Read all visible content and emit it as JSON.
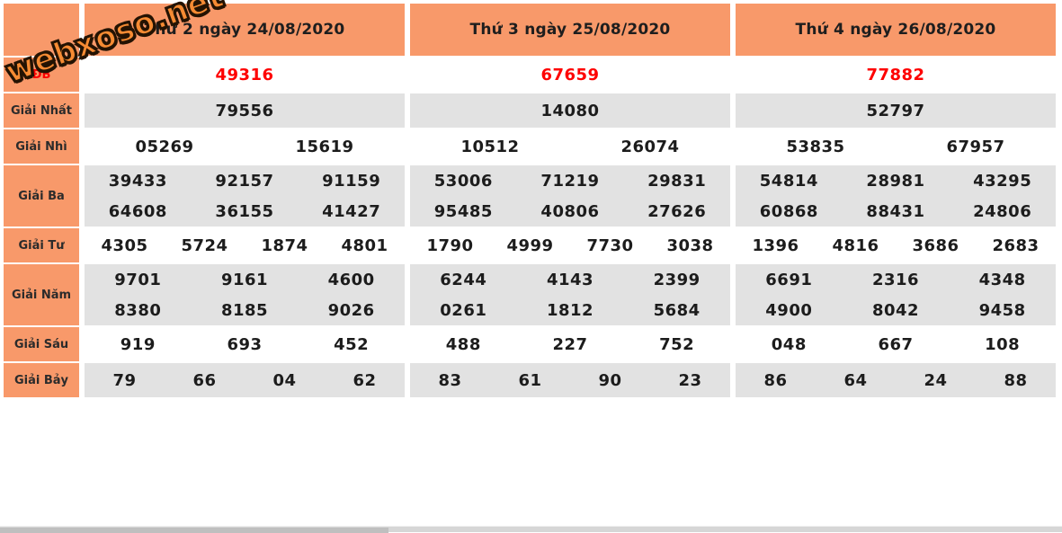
{
  "watermark": {
    "text": "webxoso.net"
  },
  "colors": {
    "header_orange": "#f8996a",
    "row_gray": "#e2e2e2",
    "special_red": "#fe0000",
    "number_text": "#1c1c1c"
  },
  "label_column": {
    "header": "",
    "rows": [
      {
        "id": "db",
        "label": "ĐB"
      },
      {
        "id": "nhat",
        "label": "Giải Nhất"
      },
      {
        "id": "nhi",
        "label": "Giải Nhì"
      },
      {
        "id": "ba",
        "label": "Giải Ba"
      },
      {
        "id": "tu",
        "label": "Giải Tư"
      },
      {
        "id": "nam",
        "label": "Giải Năm"
      },
      {
        "id": "sau",
        "label": "Giải Sáu"
      },
      {
        "id": "bay",
        "label": "Giải Bảy"
      }
    ]
  },
  "days": [
    {
      "title": "Thứ 2 ngày 24/08/2020",
      "prizes": {
        "db": [
          "49316"
        ],
        "nhat": [
          "79556"
        ],
        "nhi": [
          "05269",
          "15619"
        ],
        "ba": [
          "39433",
          "92157",
          "91159",
          "64608",
          "36155",
          "41427"
        ],
        "tu": [
          "4305",
          "5724",
          "1874",
          "4801"
        ],
        "nam": [
          "9701",
          "9161",
          "4600",
          "8380",
          "8185",
          "9026"
        ],
        "sau": [
          "919",
          "693",
          "452"
        ],
        "bay": [
          "79",
          "66",
          "04",
          "62"
        ]
      }
    },
    {
      "title": "Thứ 3 ngày 25/08/2020",
      "prizes": {
        "db": [
          "67659"
        ],
        "nhat": [
          "14080"
        ],
        "nhi": [
          "10512",
          "26074"
        ],
        "ba": [
          "53006",
          "71219",
          "29831",
          "95485",
          "40806",
          "27626"
        ],
        "tu": [
          "1790",
          "4999",
          "7730",
          "3038"
        ],
        "nam": [
          "6244",
          "4143",
          "2399",
          "0261",
          "1812",
          "5684"
        ],
        "sau": [
          "488",
          "227",
          "752"
        ],
        "bay": [
          "83",
          "61",
          "90",
          "23"
        ]
      }
    },
    {
      "title": "Thứ 4 ngày 26/08/2020",
      "prizes": {
        "db": [
          "77882"
        ],
        "nhat": [
          "52797"
        ],
        "nhi": [
          "53835",
          "67957"
        ],
        "ba": [
          "54814",
          "28981",
          "43295",
          "60868",
          "88431",
          "24806"
        ],
        "tu": [
          "1396",
          "4816",
          "3686",
          "2683"
        ],
        "nam": [
          "6691",
          "2316",
          "4348",
          "4900",
          "8042",
          "9458"
        ],
        "sau": [
          "048",
          "667",
          "108"
        ],
        "bay": [
          "86",
          "64",
          "24",
          "88"
        ]
      }
    }
  ]
}
